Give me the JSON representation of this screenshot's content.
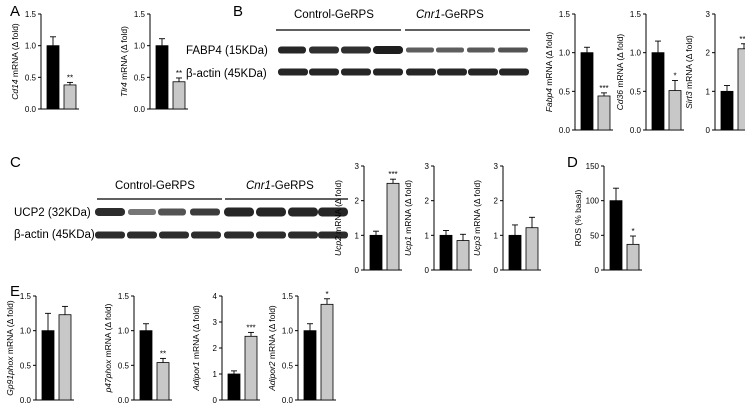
{
  "panels": {
    "A": "A",
    "B": "B",
    "C": "C",
    "D": "D",
    "E": "E"
  },
  "blots": {
    "B": {
      "groups": [
        {
          "label": "Control-GeRPS",
          "italic_part": "",
          "rest": "Control-GeRPS"
        },
        {
          "label": "Cnr1-GeRPS",
          "italic_part": "Cnr1",
          "rest": "-GeRPS"
        }
      ],
      "rows": [
        "FABP4 (15KDa)",
        "β-actin (45KDa)"
      ]
    },
    "C": {
      "groups": [
        {
          "label": "Control-GeRPS",
          "italic_part": "",
          "rest": "Control-GeRPS"
        },
        {
          "label": "Cnr1-GeRPS",
          "italic_part": "Cnr1",
          "rest": "-GeRPS"
        }
      ],
      "rows": [
        "UCP2 (32KDa)",
        "β-actin (45KDa)"
      ]
    }
  },
  "chart_data": [
    {
      "type": "bar",
      "panel": "A",
      "gene": "Cd14",
      "ylabel_rest": " mRNA (Δ fold)",
      "ylim": [
        0,
        1.5
      ],
      "yticks": [
        "0.0",
        "0.5",
        "1.0",
        "1.5"
      ],
      "values": [
        1.0,
        0.38
      ],
      "errors": [
        0.14,
        0.04
      ],
      "significance": [
        "",
        "**"
      ],
      "colors": [
        "#000000",
        "#c8c8c8"
      ]
    },
    {
      "type": "bar",
      "panel": "A",
      "gene": "Tlr4",
      "ylabel_rest": " mRNA (Δ fold)",
      "ylim": [
        0,
        1.5
      ],
      "yticks": [
        "0.0",
        "0.5",
        "1.0",
        "1.5"
      ],
      "values": [
        1.0,
        0.43
      ],
      "errors": [
        0.11,
        0.06
      ],
      "significance": [
        "",
        "**"
      ],
      "colors": [
        "#000000",
        "#c8c8c8"
      ]
    },
    {
      "type": "bar",
      "panel": "B",
      "gene": "Fabp4",
      "ylabel_rest": " mRNA (Δ fold)",
      "ylim": [
        0,
        1.5
      ],
      "yticks": [
        "0.0",
        "0.5",
        "1.0",
        "1.5"
      ],
      "values": [
        1.0,
        0.44
      ],
      "errors": [
        0.07,
        0.04
      ],
      "significance": [
        "",
        "***"
      ],
      "colors": [
        "#000000",
        "#c8c8c8"
      ]
    },
    {
      "type": "bar",
      "panel": "B",
      "gene": "Cd36",
      "ylabel_rest": " mRNA (Δ fold)",
      "ylim": [
        0,
        1.5
      ],
      "yticks": [
        "0.0",
        "0.5",
        "1.0",
        "1.5"
      ],
      "values": [
        1.0,
        0.51
      ],
      "errors": [
        0.15,
        0.13
      ],
      "significance": [
        "",
        "*"
      ],
      "colors": [
        "#000000",
        "#c8c8c8"
      ]
    },
    {
      "type": "bar",
      "panel": "B",
      "gene": "Sirt3",
      "ylabel_rest": " mRNA (Δ fold)",
      "ylim": [
        0,
        3
      ],
      "yticks": [
        "0",
        "1",
        "2",
        "3"
      ],
      "values": [
        1.0,
        2.1
      ],
      "errors": [
        0.15,
        0.13
      ],
      "significance": [
        "",
        "***"
      ],
      "colors": [
        "#000000",
        "#c8c8c8"
      ]
    },
    {
      "type": "bar",
      "panel": "C",
      "gene": "Ucp2",
      "ylabel_rest": " mRNA (Δ fold)",
      "ylim": [
        0,
        3
      ],
      "yticks": [
        "0",
        "1",
        "2",
        "3"
      ],
      "values": [
        1.0,
        2.5
      ],
      "errors": [
        0.12,
        0.12
      ],
      "significance": [
        "",
        "***"
      ],
      "colors": [
        "#000000",
        "#c8c8c8"
      ]
    },
    {
      "type": "bar",
      "panel": "C",
      "gene": "Ucp1",
      "ylabel_rest": " mRNA (Δ fold)",
      "ylim": [
        0,
        3
      ],
      "yticks": [
        "0",
        "1",
        "2",
        "3"
      ],
      "values": [
        1.0,
        0.85
      ],
      "errors": [
        0.14,
        0.18
      ],
      "significance": [
        "",
        ""
      ],
      "colors": [
        "#000000",
        "#c8c8c8"
      ]
    },
    {
      "type": "bar",
      "panel": "C",
      "gene": "Ucp3",
      "ylabel_rest": " mRNA (Δ fold)",
      "ylim": [
        0,
        3
      ],
      "yticks": [
        "0",
        "1",
        "2",
        "3"
      ],
      "values": [
        1.0,
        1.22
      ],
      "errors": [
        0.3,
        0.3
      ],
      "significance": [
        "",
        ""
      ],
      "colors": [
        "#000000",
        "#c8c8c8"
      ]
    },
    {
      "type": "bar",
      "panel": "D",
      "gene": "",
      "ylabel_rest": "ROS (% basal)",
      "ylim": [
        0,
        150
      ],
      "yticks": [
        "0",
        "50",
        "100",
        "150"
      ],
      "values": [
        100,
        37
      ],
      "errors": [
        18,
        12
      ],
      "significance": [
        "",
        "*"
      ],
      "colors": [
        "#000000",
        "#c8c8c8"
      ]
    },
    {
      "type": "bar",
      "panel": "E",
      "gene": "Gp91phox",
      "ylabel_rest": " mRNA (Δ fold)",
      "ylim": [
        0,
        1.5
      ],
      "yticks": [
        "0.0",
        "0.5",
        "1.0",
        "1.5"
      ],
      "values": [
        1.0,
        1.23
      ],
      "errors": [
        0.25,
        0.12
      ],
      "significance": [
        "",
        ""
      ],
      "colors": [
        "#000000",
        "#c8c8c8"
      ]
    },
    {
      "type": "bar",
      "panel": "E",
      "gene": "p47phox",
      "ylabel_rest": " mRNA (Δ fold)",
      "ylim": [
        0,
        1.5
      ],
      "yticks": [
        "0.0",
        "0.5",
        "1.0",
        "1.5"
      ],
      "values": [
        1.0,
        0.54
      ],
      "errors": [
        0.1,
        0.06
      ],
      "significance": [
        "",
        "**"
      ],
      "colors": [
        "#000000",
        "#c8c8c8"
      ]
    },
    {
      "type": "bar",
      "panel": "E",
      "gene": "Adipor1",
      "ylabel_rest": " mRNA (Δ fold)",
      "ylim": [
        0,
        4
      ],
      "yticks": [
        "0",
        "1",
        "2",
        "3",
        "4"
      ],
      "values": [
        1.0,
        2.45
      ],
      "errors": [
        0.12,
        0.15
      ],
      "significance": [
        "",
        "***"
      ],
      "colors": [
        "#000000",
        "#c8c8c8"
      ]
    },
    {
      "type": "bar",
      "panel": "E",
      "gene": "Adipor2",
      "ylabel_rest": " mRNA (Δ fold)",
      "ylim": [
        0,
        1.5
      ],
      "yticks": [
        "0.0",
        "0.5",
        "1.0",
        "1.5"
      ],
      "values": [
        1.0,
        1.38
      ],
      "errors": [
        0.1,
        0.08
      ],
      "significance": [
        "",
        "*"
      ],
      "colors": [
        "#000000",
        "#c8c8c8"
      ]
    }
  ]
}
